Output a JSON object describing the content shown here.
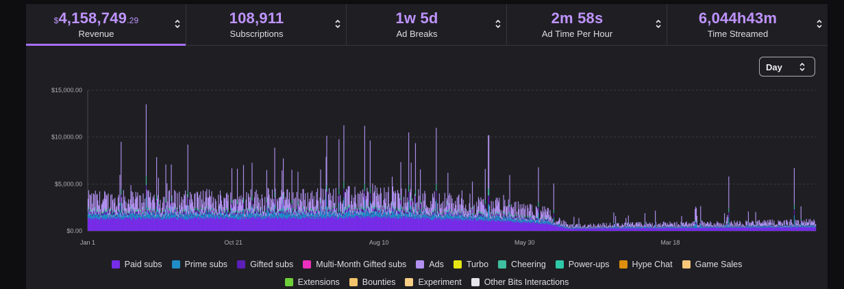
{
  "stats": [
    {
      "currency": "$",
      "value": "4,158,749",
      "cents": ".29",
      "label": "Revenue",
      "active": true
    },
    {
      "currency": "",
      "value": "108,911",
      "cents": "",
      "label": "Subscriptions",
      "active": false
    },
    {
      "currency": "",
      "value": "1w 5d",
      "cents": "",
      "label": "Ad Breaks",
      "active": false
    },
    {
      "currency": "",
      "value": "2m 58s",
      "cents": "",
      "label": "Ad Time Per Hour",
      "active": false
    },
    {
      "currency": "",
      "value": "6,044h43m",
      "cents": "",
      "label": "Time Streamed",
      "active": false
    }
  ],
  "granularity_select": {
    "value": "Day",
    "icon": "sort-arrows-icon"
  },
  "colors": {
    "accent": "#a970ff",
    "stat_value": "#bf94ff",
    "background": "#0e0e10",
    "panel": "#1f1f23"
  },
  "chart_data": {
    "type": "bar",
    "stacked": true,
    "grid": "horizontal dashed",
    "ylim": [
      0,
      15000
    ],
    "y_ticks": [
      {
        "value": 0,
        "label": "$0.00"
      },
      {
        "value": 5000,
        "label": "$5,000.00"
      },
      {
        "value": 10000,
        "label": "$10,000.00"
      },
      {
        "value": 15000,
        "label": "$15,000.00"
      }
    ],
    "x_ticks": [
      {
        "pos": 0.0,
        "label": "Jan 1"
      },
      {
        "pos": 0.2,
        "label": "Oct 21"
      },
      {
        "pos": 0.4,
        "label": "Aug 10"
      },
      {
        "pos": 0.6,
        "label": "May 30"
      },
      {
        "pos": 0.8,
        "label": "Mar 18"
      }
    ],
    "num_days": 1190,
    "series": [
      {
        "name": "Paid subs",
        "color": "#772ce8"
      },
      {
        "name": "Prime subs",
        "color": "#1f8dc7"
      },
      {
        "name": "Gifted subs",
        "color": "#5c1fb8"
      },
      {
        "name": "Multi-Month Gifted subs",
        "color": "#eb2fbe"
      },
      {
        "name": "Ads",
        "color": "#b190f0"
      },
      {
        "name": "Turbo",
        "color": "#e6e615"
      },
      {
        "name": "Cheering",
        "color": "#3fbfa0"
      },
      {
        "name": "Power-ups",
        "color": "#2ec9a8"
      },
      {
        "name": "Hype Chat",
        "color": "#de8f0d"
      },
      {
        "name": "Game Sales",
        "color": "#f7c77a"
      },
      {
        "name": "Extensions",
        "color": "#6fcf3a"
      },
      {
        "name": "Bounties",
        "color": "#f2c36b"
      },
      {
        "name": "Experiment",
        "color": "#f7cf85"
      },
      {
        "name": "Other Bits Interactions",
        "color": "#e6e6ea"
      }
    ],
    "typical_daily_total": [
      {
        "pos": 0.0,
        "value": 3000
      },
      {
        "pos": 0.3,
        "value": 3200
      },
      {
        "pos": 0.4,
        "value": 3400
      },
      {
        "pos": 0.55,
        "value": 2600
      },
      {
        "pos": 0.63,
        "value": 1800
      },
      {
        "pos": 0.66,
        "value": 500
      },
      {
        "pos": 0.7,
        "value": 600
      },
      {
        "pos": 1.0,
        "value": 900
      }
    ],
    "peaks": [
      {
        "pos": 0.08,
        "value": 13500
      },
      {
        "pos": 0.045,
        "value": 9500
      },
      {
        "pos": 0.38,
        "value": 11200
      },
      {
        "pos": 0.44,
        "value": 10500
      },
      {
        "pos": 0.55,
        "value": 10200
      },
      {
        "pos": 0.97,
        "value": 6700
      },
      {
        "pos": 0.88,
        "value": 5800
      }
    ]
  },
  "legend_rows": [
    [
      0,
      1,
      2,
      3,
      4,
      5,
      6,
      7,
      8,
      9
    ],
    [
      10,
      11,
      12,
      13
    ]
  ]
}
